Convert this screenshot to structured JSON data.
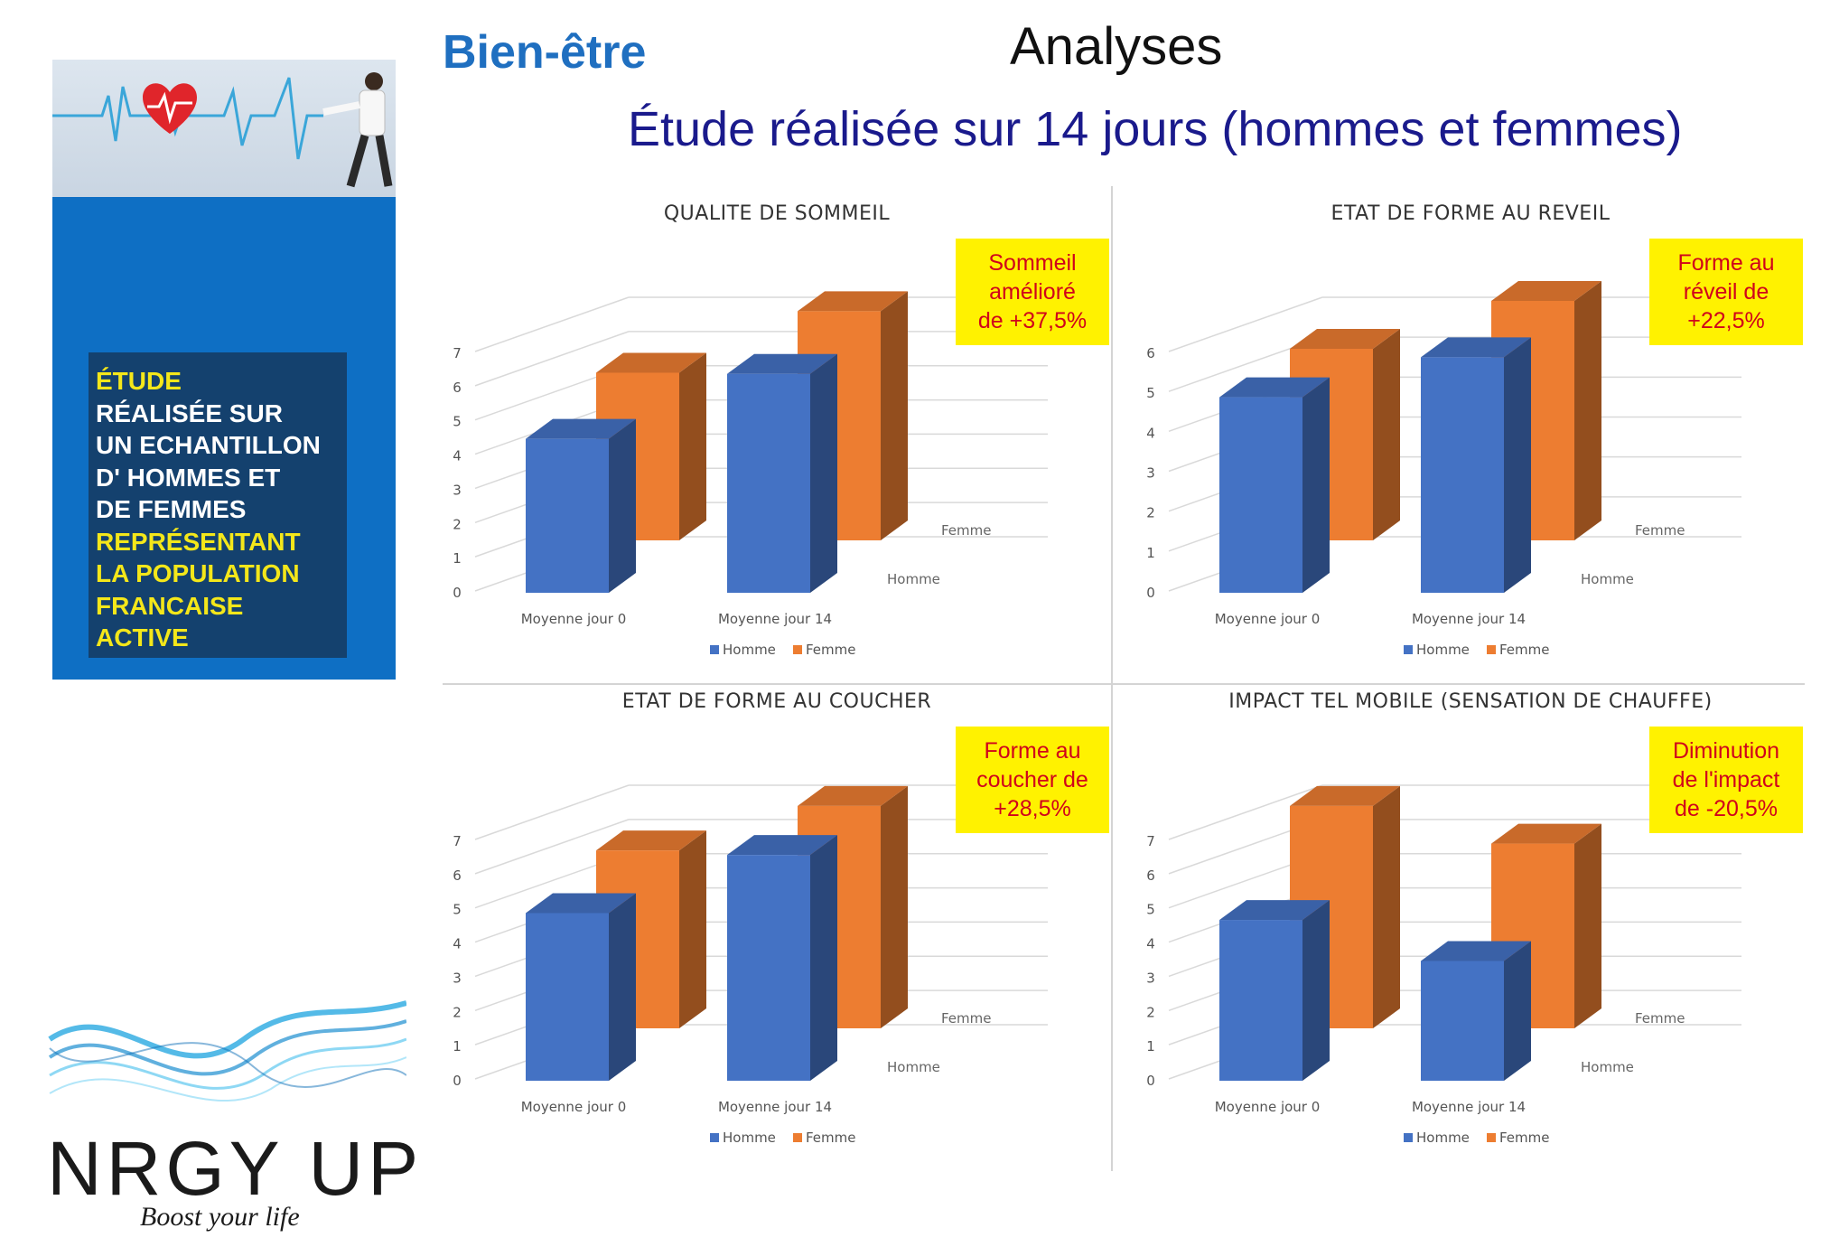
{
  "header": {
    "brand_title": "Bien-être",
    "section_title": "Analyses",
    "subtitle": "Étude réalisée sur 14 jours (hommes et femmes)"
  },
  "study_box": {
    "lines": [
      {
        "text": "ÉTUDE",
        "color": "#f4e71a"
      },
      {
        "text": "RÉALISÉE SUR",
        "color": "#ffffff"
      },
      {
        "text": "UN ECHANTILLON",
        "color": "#ffffff"
      },
      {
        "text": "D' HOMMES ET",
        "color": "#ffffff"
      },
      {
        "text": "DE FEMMES",
        "color": "#ffffff"
      },
      {
        "text": "REPRÉSENTANT",
        "color": "#f4e71a"
      },
      {
        "text": "LA POPULATION",
        "color": "#f4e71a"
      },
      {
        "text": "FRANCAISE",
        "color": "#f4e71a"
      },
      {
        "text": "ACTIVE",
        "color": "#f4e71a"
      }
    ]
  },
  "logo": {
    "name": "NRGY UP",
    "tagline": "Boost your life"
  },
  "colors": {
    "homme": "#4472c4",
    "femme": "#ed7d31",
    "callout_bg": "#fff200",
    "callout_text": "#d0021b"
  },
  "chart_data": [
    {
      "type": "bar",
      "title": "QUALITE DE SOMMEIL",
      "categories": [
        "Moyenne jour 0",
        "Moyenne jour 14"
      ],
      "series": [
        {
          "name": "Homme",
          "values": [
            4.5,
            6.4
          ]
        },
        {
          "name": "Femme",
          "values": [
            4.9,
            6.7
          ]
        }
      ],
      "y_ticks": [
        0,
        1,
        2,
        3,
        4,
        5,
        6,
        7
      ],
      "ylim": [
        0,
        7
      ],
      "depth_labels": [
        "Homme",
        "Femme"
      ],
      "legend": [
        "Homme",
        "Femme"
      ],
      "callout": [
        "Sommeil",
        "amélioré",
        "de +37,5%"
      ]
    },
    {
      "type": "bar",
      "title": "ETAT DE FORME AU REVEIL",
      "categories": [
        "Moyenne jour 0",
        "Moyenne jour 14"
      ],
      "series": [
        {
          "name": "Homme",
          "values": [
            4.9,
            5.9
          ]
        },
        {
          "name": "Femme",
          "values": [
            4.8,
            6.0
          ]
        }
      ],
      "y_ticks": [
        0,
        1,
        2,
        3,
        4,
        5,
        6
      ],
      "ylim": [
        0,
        6
      ],
      "depth_labels": [
        "Homme",
        "Femme"
      ],
      "legend": [
        "Homme",
        "Femme"
      ],
      "callout": [
        "Forme au",
        "réveil de",
        "+22,5%"
      ]
    },
    {
      "type": "bar",
      "title": "ETAT DE FORME AU COUCHER",
      "categories": [
        "Moyenne jour 0",
        "Moyenne jour 14"
      ],
      "series": [
        {
          "name": "Homme",
          "values": [
            4.9,
            6.6
          ]
        },
        {
          "name": "Femme",
          "values": [
            5.2,
            6.5
          ]
        }
      ],
      "y_ticks": [
        0,
        1,
        2,
        3,
        4,
        5,
        6,
        7
      ],
      "ylim": [
        0,
        7
      ],
      "depth_labels": [
        "Homme",
        "Femme"
      ],
      "legend": [
        "Homme",
        "Femme"
      ],
      "callout": [
        "Forme au",
        "coucher de",
        "+28,5%"
      ]
    },
    {
      "type": "bar",
      "title": "IMPACT TEL MOBILE (SENSATION DE CHAUFFE)",
      "categories": [
        "Moyenne jour 0",
        "Moyenne jour 14"
      ],
      "series": [
        {
          "name": "Homme",
          "values": [
            4.7,
            3.5
          ]
        },
        {
          "name": "Femme",
          "values": [
            6.5,
            5.4
          ]
        }
      ],
      "y_ticks": [
        0,
        1,
        2,
        3,
        4,
        5,
        6,
        7
      ],
      "ylim": [
        0,
        7
      ],
      "depth_labels": [
        "Homme",
        "Femme"
      ],
      "legend": [
        "Homme",
        "Femme"
      ],
      "callout": [
        "Diminution",
        "de l'impact",
        "de -20,5%"
      ]
    }
  ]
}
